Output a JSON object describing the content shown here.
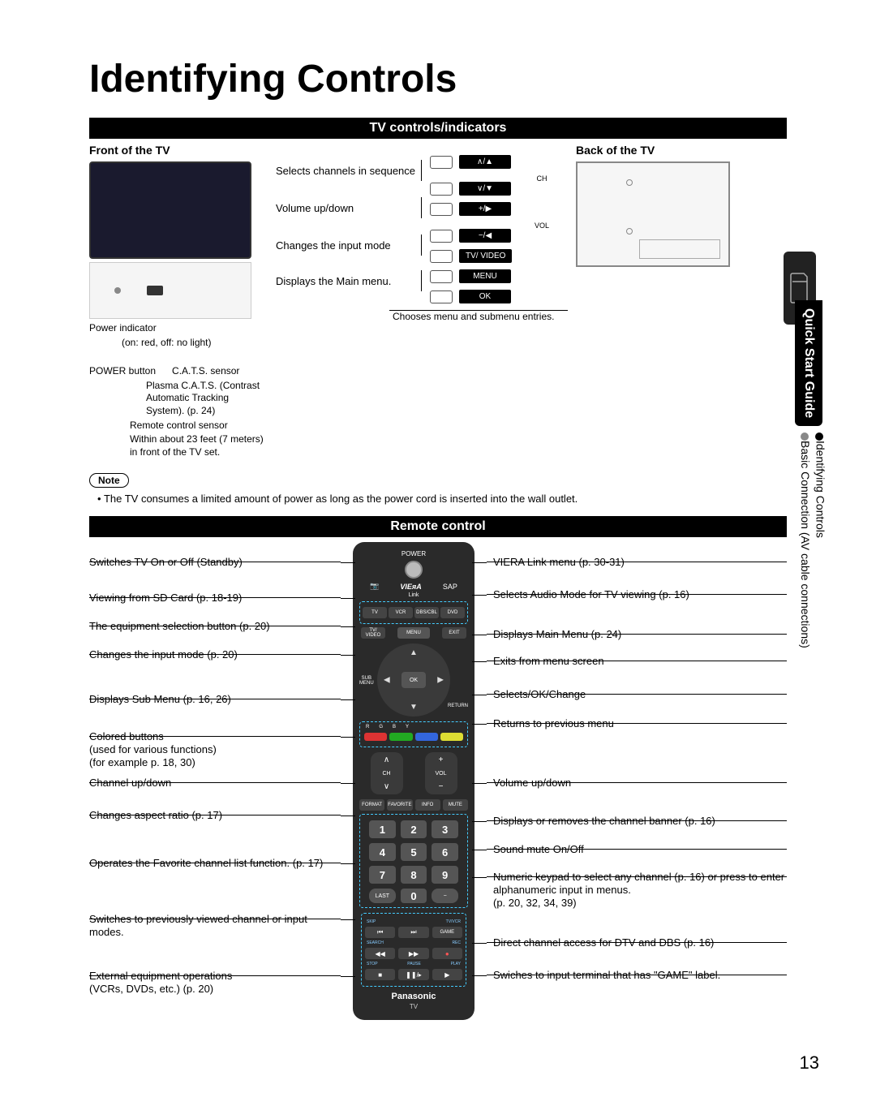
{
  "page_title": "Identifying Controls",
  "page_number": "13",
  "side_tab": {
    "heading": "Quick Start Guide",
    "lines": [
      "Identifying Controls",
      "Basic Connection (AV cable connections)"
    ]
  },
  "sections": {
    "tv_bar": "TV controls/indicators",
    "remote_bar": "Remote control"
  },
  "tv": {
    "front_head": "Front of the TV",
    "back_head": "Back of the TV",
    "front_annots": {
      "power_ind": "Power indicator",
      "power_ind_sub": "(on:  red, off:  no light)",
      "power_btn": "POWER button",
      "cats": "C.A.T.S. sensor",
      "cats_sub": "Plasma C.A.T.S. (Contrast Automatic Tracking System). (p. 24)",
      "rc_sensor": "Remote control sensor",
      "rc_sensor_sub": "Within about 23 feet (7 meters) in front of the TV set."
    },
    "side_labels": {
      "ch": "Selects channels in sequence",
      "vol": "Volume up/down",
      "input": "Changes the input mode",
      "menu": "Displays the Main menu.",
      "ok": "Chooses menu and submenu entries."
    },
    "buttons": {
      "ch_up": "∧/▲",
      "ch_mid": "CH",
      "ch_dn": "∨/▼",
      "vol_up": "+/▶",
      "vol_mid": "VOL",
      "vol_dn": "−/◀",
      "tvvideo": "TV/ VIDEO",
      "menu": "MENU",
      "ok": "OK"
    },
    "note_label": "Note",
    "note_text": "The TV consumes a limited amount of power as long as the power cord is inserted into the wall outlet."
  },
  "remote": {
    "left": [
      {
        "text": "Switches TV On or Off (Standby)",
        "gap": 22
      },
      {
        "text": "Viewing from SD Card (p. 18-19)",
        "gap": 14
      },
      {
        "text": "The equipment selection button (p. 20)",
        "gap": 14
      },
      {
        "text": "Changes the input mode (p. 20)",
        "gap": 34
      },
      {
        "text": "Displays Sub Menu (p. 16, 26)",
        "gap": 24
      },
      {
        "text": "Colored buttons\n(used for various functions)\n(for example p. 18, 30)",
        "gap": 4
      },
      {
        "text": "Channel up/down",
        "gap": 18
      },
      {
        "text": "Changes aspect ratio (p. 17)",
        "gap": 38
      },
      {
        "text": "Operates the Favorite channel list function. (p. 17)",
        "gap": 48
      },
      {
        "text": "Switches to previously viewed channel or input modes.",
        "gap": 32
      },
      {
        "text": "External equipment operations\n(VCRs, DVDs, etc.) (p. 20)",
        "gap": 0
      }
    ],
    "right": [
      {
        "text": "VIERA Link menu (p. 30-31)",
        "gap": 18
      },
      {
        "text": "Selects Audio Mode for TV viewing (p. 16)",
        "gap": 28
      },
      {
        "text": "Displays Main Menu (p. 24)",
        "gap": 12
      },
      {
        "text": "Exits from menu screen",
        "gap": 20
      },
      {
        "text": "Selects/OK/Change",
        "gap": 14
      },
      {
        "text": "Returns to previous menu",
        "gap": 52
      },
      {
        "text": "Volume up/down",
        "gap": 26
      },
      {
        "text": "Displays or removes the channel banner (p. 16)",
        "gap": 14
      },
      {
        "text": "Sound mute On/Off",
        "gap": 12
      },
      {
        "text": "Numeric keypad to select any channel (p. 16) or press to enter alphanumeric input in menus.\n(p. 20, 32, 34, 39)",
        "gap": 28
      },
      {
        "text": "Direct channel access for DTV and DBS (p. 16)",
        "gap": 18
      },
      {
        "text": "Swiches to input terminal that has \"GAME\" label.",
        "gap": 0
      }
    ],
    "body": {
      "power": "POWER",
      "viera": "VIEᴙA",
      "sap": "SAP",
      "link": "Link",
      "eq_row": [
        "TV",
        "VCR",
        "DBS/CBL",
        "DVD"
      ],
      "menu_row": {
        "l": "TV/\nVIDEO",
        "c": "MENU",
        "r": "EXIT"
      },
      "submenu": "SUB\nMENU",
      "return": "RETURN",
      "ok": "OK",
      "color_labels": [
        "R",
        "G",
        "B",
        "Y"
      ],
      "color_hex": [
        "#d33",
        "#2a2",
        "#36d",
        "#dd3"
      ],
      "ch": "CH",
      "vol": "VOL",
      "row4": [
        "FORMAT",
        "FAVORITE",
        "INFO",
        "MUTE"
      ],
      "keys": [
        "1",
        "2",
        "3",
        "4",
        "5",
        "6",
        "7",
        "8",
        "9"
      ],
      "last": "LAST",
      "zero": "0",
      "dash": "−",
      "transport_lbls": {
        "skip": "SKIP",
        "tvvcr": "TV/VCR",
        "game": "GAME",
        "search": "SEARCH",
        "rec": "REC",
        "stop": "STOP",
        "pause": "PAUSE",
        "play": "PLAY"
      },
      "brand": "Panasonic",
      "sub": "TV"
    }
  }
}
